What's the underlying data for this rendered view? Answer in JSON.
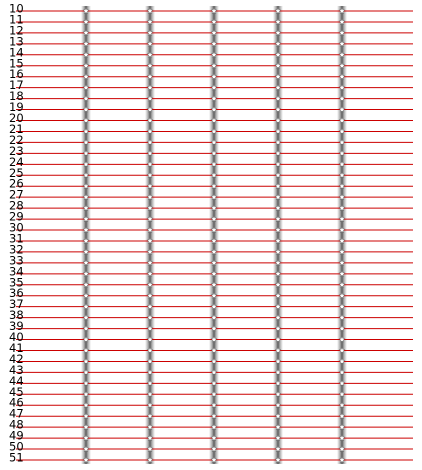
{
  "row_labels": [
    "10",
    "11",
    "12",
    "13",
    "14",
    "15",
    "16",
    "17",
    "18",
    "19",
    "20",
    "21",
    "22",
    "23",
    "24",
    "25",
    "26",
    "27",
    "28",
    "29",
    "30",
    "31",
    "32",
    "33",
    "34",
    "35",
    "36",
    "37",
    "38",
    "39",
    "40",
    "41",
    "42",
    "43",
    "44",
    "45",
    "46",
    "47",
    "48",
    "49",
    "50",
    "51"
  ],
  "column_count": 5,
  "colors": {
    "line": "#cc0000",
    "pillar_edge": "#a0a0a0",
    "pillar_core": "#5a5a5a",
    "star": "#ffffff",
    "label": "#000000"
  },
  "icons": {
    "marker": "star-icon"
  }
}
